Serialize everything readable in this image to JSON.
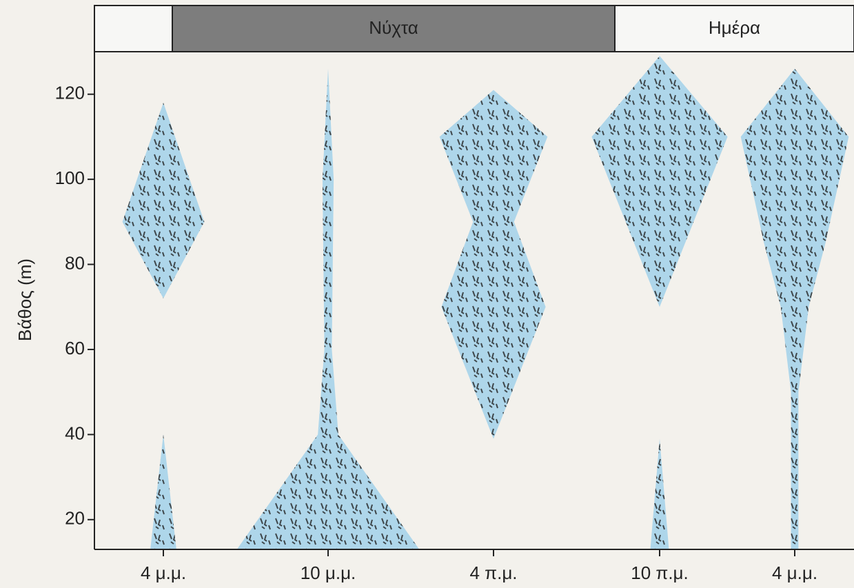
{
  "chart_data": {
    "type": "profile",
    "y_label": "Βάθος (m)",
    "categories": [
      "4 μ.μ.",
      "10 μ.μ.",
      "4 π.μ.",
      "10 π.μ.",
      "4 μ.μ."
    ],
    "periods": [
      "Νύχτα",
      "Ημέρα"
    ],
    "ylim": [
      13,
      130
    ],
    "yticks": [
      20,
      40,
      60,
      80,
      100,
      120
    ],
    "color": "#aed6ea",
    "series": [
      {
        "category": 0,
        "depth": [
          13,
          40
        ],
        "width": [
          0.14,
          0
        ]
      },
      {
        "category": 0,
        "depth": [
          72,
          90,
          118
        ],
        "width": [
          0,
          0.44,
          0
        ]
      },
      {
        "category": 1,
        "depth": [
          13,
          40,
          60,
          100,
          126
        ],
        "width": [
          0.98,
          0.11,
          0.04,
          0.06,
          0
        ]
      },
      {
        "category": 2,
        "depth": [
          39,
          70,
          90,
          110,
          121
        ],
        "width": [
          0,
          0.56,
          0.22,
          0.58,
          0
        ]
      },
      {
        "category": 3,
        "depth": [
          13,
          39
        ],
        "width": [
          0.1,
          0
        ]
      },
      {
        "category": 3,
        "depth": [
          70,
          110,
          129
        ],
        "width": [
          0,
          0.73,
          0
        ]
      },
      {
        "category": 4,
        "depth": [
          13,
          50,
          70,
          85,
          110,
          126
        ],
        "width": [
          0.04,
          0.04,
          0.15,
          0.33,
          0.58,
          0
        ]
      }
    ]
  }
}
